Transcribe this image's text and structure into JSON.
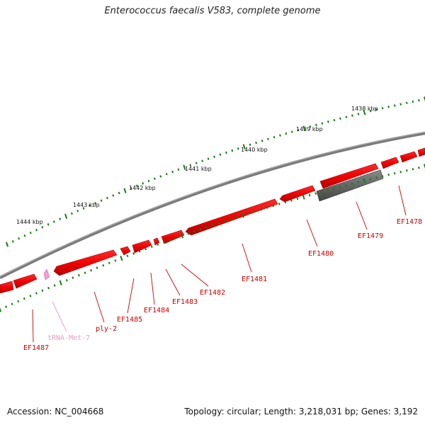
{
  "title": "Enterococcus faecalis V583, complete genome",
  "footer": {
    "accession": "Accession: NC_004668",
    "summary": "Topology: circular; Length: 3,218,031 bp; Genes: 3,192"
  },
  "colors": {
    "backbone": "#7f7f7f",
    "gene": "#ee0000",
    "gene_dark": "#b00000",
    "pseudo_gene": "#5a5a5a",
    "trna": "#f0a0d0",
    "tick": "#1a7a1a",
    "gene_label": "#cc0000",
    "trna_label": "#e89bc8"
  },
  "scale_ticks": [
    "1438 kbp",
    "1439 kbp",
    "1440 kbp",
    "1441 kbp",
    "1442 kbp",
    "1443 kbp",
    "1444 kbp"
  ],
  "gene_labels": [
    "EF1478",
    "EF1479",
    "EF1480",
    "EF1481",
    "EF1482",
    "EF1483",
    "EF1484",
    "EF1485",
    "ply-2",
    "EF1487"
  ],
  "trna_labels": [
    "tRNA-Met-7"
  ]
}
